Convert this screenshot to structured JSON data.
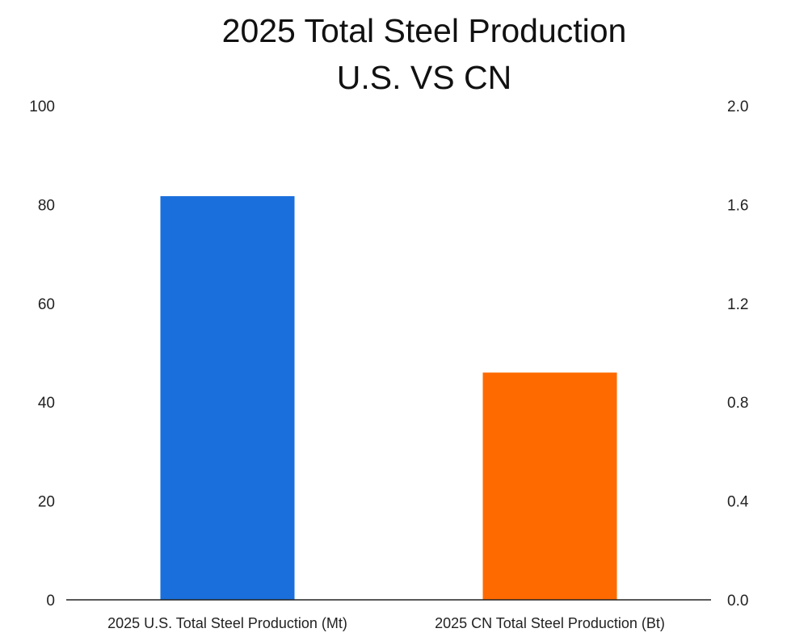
{
  "chart_data": {
    "type": "bar",
    "title": "2025 Total Steel Production",
    "subtitle": "U.S. VS CN",
    "xlabel": "",
    "ylabel": "",
    "categories": [
      "2025 U.S. Total Steel Production (Mt)",
      "2025 CN Total Steel Production (Bt)"
    ],
    "series": [
      {
        "name": "2025 U.S. Total Steel Production (Mt)",
        "axis": "left",
        "values": [
          81.7,
          null
        ],
        "color": "#1a6fdc"
      },
      {
        "name": "2025 CN Total Steel Production (Bt)",
        "axis": "right",
        "values": [
          null,
          0.92
        ],
        "color": "#ff6a00"
      }
    ],
    "left_axis": {
      "ylim": [
        0,
        100
      ],
      "ticks": [
        "0",
        "20",
        "40",
        "60",
        "80",
        "100"
      ],
      "tick_values": [
        0,
        20,
        40,
        60,
        80,
        100
      ]
    },
    "right_axis": {
      "ylim": [
        0,
        2.0
      ],
      "ticks": [
        "0.0",
        "0.4",
        "0.8",
        "1.2",
        "1.6",
        "2.0"
      ],
      "tick_values": [
        0,
        0.4,
        0.8,
        1.2,
        1.6,
        2.0
      ]
    },
    "grid": false,
    "legend": "none"
  }
}
